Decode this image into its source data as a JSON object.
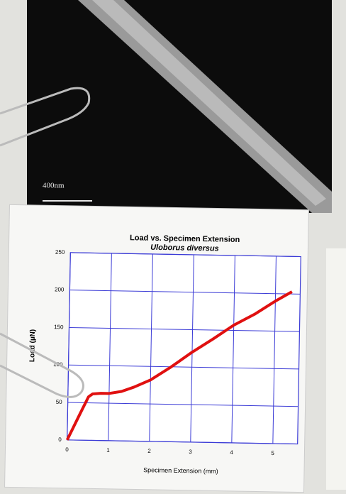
{
  "sem_image": {
    "scale_label": "400nm"
  },
  "chart_data": {
    "type": "line",
    "title": "Load vs. Specimen Extension",
    "subtitle": "Uloborus diversus",
    "x_label": "Specimen Extension (mm)",
    "y_label": "Load (µN)",
    "x": [
      0,
      0.3,
      0.5,
      0.6,
      0.8,
      1,
      1.3,
      1.6,
      2,
      2.5,
      3,
      3.5,
      4,
      4.5,
      5,
      5.4
    ],
    "series": [
      {
        "name": "Load",
        "color": "#e01010",
        "values": [
          0,
          35,
          58,
          62,
          63,
          63,
          66,
          72,
          82,
          100,
          120,
          138,
          157,
          172,
          190,
          203
        ]
      }
    ],
    "xlim": [
      0,
      5.6
    ],
    "xticks": [
      0,
      1,
      2,
      3,
      4,
      5
    ],
    "ylim": [
      0,
      250
    ],
    "yticks": [
      0,
      50,
      100,
      150,
      200,
      250
    ],
    "grid": true,
    "grid_color": "#3b3bd6"
  }
}
